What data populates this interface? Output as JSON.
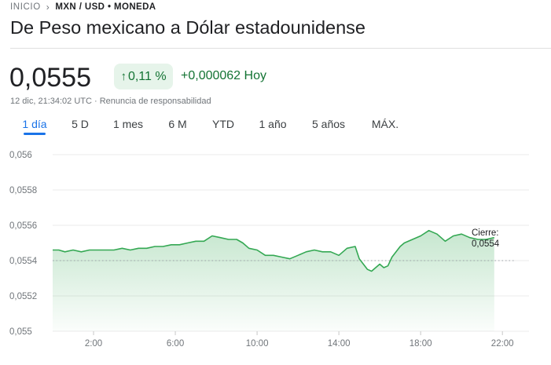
{
  "breadcrumb": {
    "home": "INICIO",
    "separator": "›",
    "pair": "MXN / USD • MONEDA"
  },
  "page_title": "De Peso mexicano a Dólar estadounidense",
  "quote": {
    "price": "0,0555",
    "change_percent": "0,11 %",
    "change_icon": "arrow-up-icon",
    "change_abs": "+0,000062 Hoy",
    "timestamp": "12 dic, 21:34:02 UTC · Renuncia de responsabilidad"
  },
  "tabs": [
    {
      "label": "1 día",
      "active": true
    },
    {
      "label": "5 D"
    },
    {
      "label": "1 mes"
    },
    {
      "label": "6 M"
    },
    {
      "label": "YTD"
    },
    {
      "label": "1 año"
    },
    {
      "label": "5 años"
    },
    {
      "label": "MÁX."
    }
  ],
  "colors": {
    "up": "#137333",
    "line": "#34a853",
    "accent": "#1a73e8",
    "grid": "#ebebeb",
    "text_secondary": "#70757a"
  },
  "chart_data": {
    "type": "area",
    "y_tick_labels": [
      "0,056",
      "0,0558",
      "0,0556",
      "0,0554",
      "0,0552",
      "0,055"
    ],
    "y_ticks": [
      0.056,
      0.0558,
      0.0556,
      0.0554,
      0.0552,
      0.055
    ],
    "ylim": [
      0.055,
      0.056
    ],
    "xlim": [
      0,
      22.8
    ],
    "x_ticks": [
      2,
      6,
      10,
      14,
      18,
      22
    ],
    "x_tick_labels": [
      "2:00",
      "6:00",
      "10:00",
      "14:00",
      "18:00",
      "22:00"
    ],
    "grid": "horizontal",
    "previous_close": {
      "label": "Cierre:",
      "value": 0.0554,
      "value_label": "0,0554"
    },
    "series": [
      {
        "x": [
          0,
          0.3,
          0.6,
          1.0,
          1.4,
          1.8,
          2.2,
          2.6,
          3.0,
          3.4,
          3.8,
          4.2,
          4.6,
          5.0,
          5.4,
          5.8,
          6.2,
          6.6,
          7.0,
          7.4,
          7.8,
          8.2,
          8.6,
          9.0,
          9.3,
          9.6,
          10.0,
          10.4,
          10.8,
          11.2,
          11.6,
          12.0,
          12.4,
          12.8,
          13.2,
          13.6,
          14.0,
          14.4,
          14.8,
          15.0,
          15.2,
          15.4,
          15.6,
          15.8,
          16.0,
          16.2,
          16.4,
          16.6,
          16.8,
          17.0,
          17.2,
          17.6,
          18.0,
          18.4,
          18.8,
          19.2,
          19.6,
          20.0,
          20.4,
          20.8,
          21.2,
          21.6
        ],
        "y": [
          0.05546,
          0.05546,
          0.05545,
          0.05546,
          0.05545,
          0.05546,
          0.05546,
          0.05546,
          0.05546,
          0.05547,
          0.05546,
          0.05547,
          0.05547,
          0.05548,
          0.05548,
          0.05549,
          0.05549,
          0.0555,
          0.05551,
          0.05551,
          0.05554,
          0.05553,
          0.05552,
          0.05552,
          0.0555,
          0.05547,
          0.05546,
          0.05543,
          0.05543,
          0.05542,
          0.05541,
          0.05543,
          0.05545,
          0.05546,
          0.05545,
          0.05545,
          0.05543,
          0.05547,
          0.05548,
          0.05541,
          0.05538,
          0.05535,
          0.05534,
          0.05536,
          0.05538,
          0.05536,
          0.05537,
          0.05542,
          0.05545,
          0.05548,
          0.0555,
          0.05552,
          0.05554,
          0.05557,
          0.05555,
          0.05551,
          0.05554,
          0.05555,
          0.05553,
          0.05552,
          0.05552,
          0.05553
        ]
      }
    ]
  }
}
